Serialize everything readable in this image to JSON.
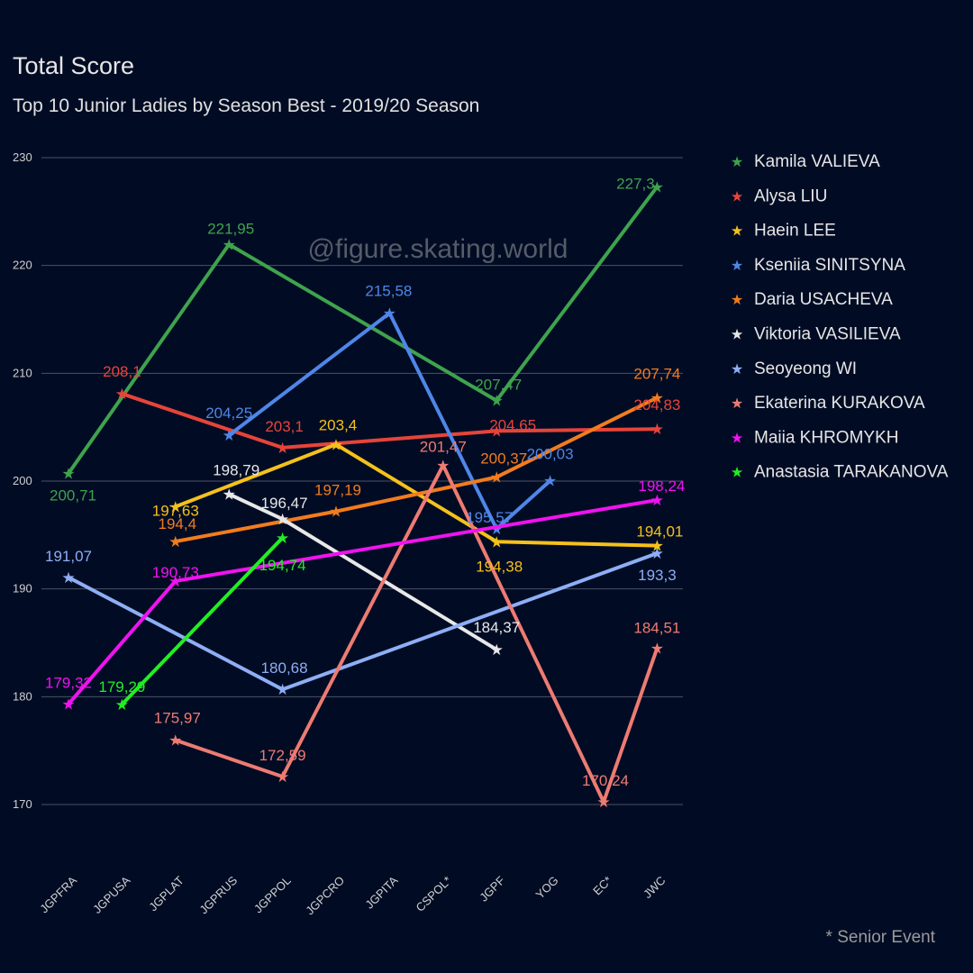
{
  "chart_data": {
    "type": "line",
    "title": "Total Score",
    "subtitle": "Top 10 Junior Ladies by Season Best - 2019/20 Season",
    "watermark": "@figure.skating.world",
    "footnote": "* Senior Event",
    "xlabel": "",
    "ylabel": "",
    "ylim": [
      170,
      230
    ],
    "yticks": [
      "170",
      "180",
      "190",
      "200",
      "210",
      "220",
      "230"
    ],
    "grid": true,
    "legend_position": "right",
    "categories": [
      "JGPFRA",
      "JGPUSA",
      "JGPLAT",
      "JGPRUS",
      "JGPPOL",
      "JGPCRO",
      "JGPITA",
      "CSPOL*",
      "JGPF",
      "YOG",
      "EC*",
      "JWC"
    ],
    "series": [
      {
        "name": "Kamila VALIEVA",
        "color": "#3fa34d",
        "points": [
          {
            "x": "JGPFRA",
            "y": 200.71,
            "label": "200,71"
          },
          {
            "x": "JGPRUS",
            "y": 221.95,
            "label": "221,95"
          },
          {
            "x": "JGPF",
            "y": 207.47,
            "label": "207,47"
          },
          {
            "x": "JWC",
            "y": 227.3,
            "label": "227,3"
          }
        ]
      },
      {
        "name": "Alysa LIU",
        "color": "#e6443a",
        "points": [
          {
            "x": "JGPUSA",
            "y": 208.1,
            "label": "208,1"
          },
          {
            "x": "JGPPOL",
            "y": 203.1,
            "label": "203,1"
          },
          {
            "x": "JGPF",
            "y": 204.65,
            "label": "204,65"
          },
          {
            "x": "JWC",
            "y": 204.83,
            "label": "204,83"
          }
        ]
      },
      {
        "name": "Haein LEE",
        "color": "#f5c11b",
        "points": [
          {
            "x": "JGPLAT",
            "y": 197.63,
            "label": "197,63"
          },
          {
            "x": "JGPCRO",
            "y": 203.4,
            "label": "203,4"
          },
          {
            "x": "JGPF",
            "y": 194.38,
            "label": "194,38"
          },
          {
            "x": "JWC",
            "y": 194.01,
            "label": "194,01"
          }
        ]
      },
      {
        "name": "Kseniia SINITSYNA",
        "color": "#4f86e8",
        "points": [
          {
            "x": "JGPRUS",
            "y": 204.25,
            "label": "204,25"
          },
          {
            "x": "JGPITA",
            "y": 215.58,
            "label": "215,58"
          },
          {
            "x": "JGPF",
            "y": 195.57,
            "label": "195,57"
          },
          {
            "x": "YOG",
            "y": 200.03,
            "label": "200,03"
          }
        ]
      },
      {
        "name": "Daria USACHEVA",
        "color": "#f27c1e",
        "points": [
          {
            "x": "JGPLAT",
            "y": 194.4,
            "label": "194,4"
          },
          {
            "x": "JGPCRO",
            "y": 197.19,
            "label": "197,19"
          },
          {
            "x": "JGPF",
            "y": 200.37,
            "label": "200,37"
          },
          {
            "x": "JWC",
            "y": 207.74,
            "label": "207,74"
          }
        ]
      },
      {
        "name": "Viktoria VASILIEVA",
        "color": "#e8e8e8",
        "points": [
          {
            "x": "JGPRUS",
            "y": 198.79,
            "label": "198,79"
          },
          {
            "x": "JGPPOL",
            "y": 196.47,
            "label": "196,47"
          },
          {
            "x": "JGPF",
            "y": 184.37,
            "label": "184,37"
          }
        ]
      },
      {
        "name": "Seoyeong WI",
        "color": "#8eaef5",
        "points": [
          {
            "x": "JGPFRA",
            "y": 191.07,
            "label": "191,07"
          },
          {
            "x": "JGPPOL",
            "y": 180.68,
            "label": "180,68"
          },
          {
            "x": "JWC",
            "y": 193.3,
            "label": "193,3"
          }
        ]
      },
      {
        "name": "Ekaterina KURAKOVA",
        "color": "#ee7b72",
        "points": [
          {
            "x": "JGPLAT",
            "y": 175.97,
            "label": "175,97"
          },
          {
            "x": "JGPPOL",
            "y": 172.59,
            "label": "172,59"
          },
          {
            "x": "CSPOL*",
            "y": 201.47,
            "label": "201,47"
          },
          {
            "x": "EC*",
            "y": 170.24,
            "label": "170,24"
          },
          {
            "x": "JWC",
            "y": 184.51,
            "label": "184,51"
          }
        ]
      },
      {
        "name": "Maiia KHROMYKH",
        "color": "#f012f0",
        "points": [
          {
            "x": "JGPFRA",
            "y": 179.32,
            "label": "179,32"
          },
          {
            "x": "JGPLAT",
            "y": 190.73,
            "label": "190,73"
          },
          {
            "x": "JWC",
            "y": 198.24,
            "label": "198,24"
          }
        ]
      },
      {
        "name": "Anastasia TARAKANOVA",
        "color": "#22ee22",
        "points": [
          {
            "x": "JGPUSA",
            "y": 179.29,
            "label": "179,29"
          },
          {
            "x": "JGPPOL",
            "y": 194.74,
            "label": "194,74"
          }
        ]
      }
    ]
  }
}
